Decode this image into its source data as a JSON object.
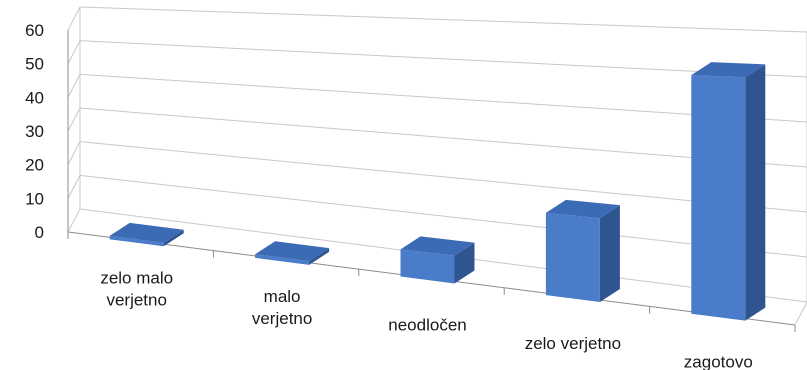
{
  "chart_data": {
    "type": "bar",
    "title": "",
    "xlabel": "",
    "ylabel": "",
    "ylim": [
      0,
      60
    ],
    "yticks": [
      0,
      10,
      20,
      30,
      40,
      50,
      60
    ],
    "grid": true,
    "legend": "none",
    "style": "3d-perspective-columns",
    "categories": [
      [
        "zelo malo",
        "verjetno"
      ],
      [
        "malo",
        "verjetno"
      ],
      [
        "neodločen"
      ],
      [
        "zelo verjetno"
      ],
      [
        "zagotovo"
      ]
    ],
    "values": [
      1,
      1,
      7,
      20,
      55
    ],
    "colors": {
      "front": "#4a7cc9",
      "top": "#3c6bb5",
      "side": "#2f5591",
      "grid": "#c8c8c8",
      "axis": "#8c8c8c"
    }
  }
}
